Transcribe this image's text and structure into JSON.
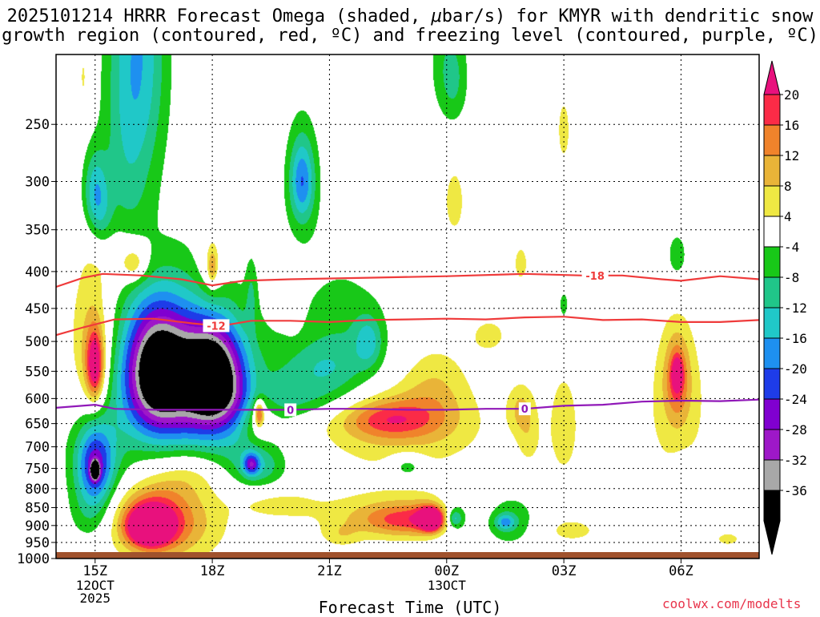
{
  "title": {
    "line1_pre": "2025101214 HRRR Forecast Omega (shaded, ",
    "line1_mu": "μ",
    "line1_post": "bar/s) for KMYR with dendritic snow",
    "line2": "growth region (contoured, red, ºC) and freezing level (contoured, purple, ºC)"
  },
  "xaxis_title": "Forecast Time (UTC)",
  "credit": "coolwx.com/modelts",
  "chart_data": {
    "type": "heatmap",
    "variable": "Omega",
    "units": "μbar/s",
    "x_labels": [
      "15Z",
      "18Z",
      "21Z",
      "00Z",
      "03Z",
      "06Z"
    ],
    "x_hours": [
      15,
      18,
      21,
      24,
      27,
      30
    ],
    "x_range_hours": [
      14,
      32
    ],
    "date_labels": [
      {
        "hour": 15,
        "lines": [
          "12OCT",
          "2025"
        ]
      },
      {
        "hour": 24,
        "lines": [
          "13OCT"
        ]
      }
    ],
    "y_levels_hpa": [
      250,
      300,
      350,
      400,
      450,
      500,
      550,
      600,
      650,
      700,
      750,
      800,
      850,
      900,
      950,
      1000
    ],
    "y_range_hpa": [
      200,
      1000
    ],
    "colorbar": {
      "labels": [
        "20",
        "16",
        "12",
        "8",
        "4",
        "-4",
        "-8",
        "-12",
        "-16",
        "-20",
        "-24",
        "-28",
        "-32",
        "-36"
      ],
      "colors": [
        "#fb2b47",
        "#f0832b",
        "#e9b438",
        "#efe843",
        "#ffffff",
        "#18c818",
        "#20c689",
        "#20c8c8",
        "#1e90f0",
        "#1e3ce8",
        "#8000d0",
        "#9e18c8",
        "#a8a8a8",
        "#000000"
      ],
      "top_arrow_color": "#e8117d",
      "bottom_arrow_color": "#000000"
    },
    "shading_levels": [
      {
        "threshold": "4",
        "color": "#efe843"
      },
      {
        "threshold": "8",
        "color": "#e9b438"
      },
      {
        "threshold": "12",
        "color": "#f0832b"
      },
      {
        "threshold": "16",
        "color": "#fb2b47"
      },
      {
        "threshold": "20",
        "color": "#e8117d"
      },
      {
        "threshold": "-4",
        "color": "#18c818"
      },
      {
        "threshold": "-8",
        "color": "#20c689"
      },
      {
        "threshold": "-12",
        "color": "#20c8c8"
      },
      {
        "threshold": "-16",
        "color": "#1e90f0"
      },
      {
        "threshold": "-20",
        "color": "#1e3ce8"
      },
      {
        "threshold": "-24",
        "color": "#8000d0"
      },
      {
        "threshold": "-28",
        "color": "#9e18c8"
      },
      {
        "threshold": "-32",
        "color": "#a8a8a8"
      },
      {
        "threshold": "-36",
        "color": "#000000"
      }
    ],
    "blobs": [
      {
        "h": 15.8,
        "p": 245,
        "rh": 0.65,
        "rp": 150,
        "v": -10
      },
      {
        "h": 16.3,
        "p": 195,
        "rh": 0.65,
        "rp": 90,
        "v": -10
      },
      {
        "h": 15.0,
        "p": 310,
        "rh": 0.32,
        "rp": 40,
        "v": -14
      },
      {
        "h": 15.2,
        "p": 340,
        "rh": 0.3,
        "rp": 35,
        "v": -5
      },
      {
        "h": 20.3,
        "p": 298,
        "rh": 0.45,
        "rp": 60,
        "v": -9
      },
      {
        "h": 20.3,
        "p": 300,
        "rh": 0.28,
        "rp": 35,
        "v": -11
      },
      {
        "h": 24.0,
        "p": 205,
        "rh": 0.5,
        "rp": 40,
        "v": -6
      },
      {
        "h": 24.2,
        "p": 220,
        "rh": 0.35,
        "rp": 30,
        "v": -5
      },
      {
        "h": 16.6,
        "p": 550,
        "rh": 0.85,
        "rp": 110,
        "v": -40
      },
      {
        "h": 18.0,
        "p": 560,
        "rh": 0.75,
        "rp": 90,
        "v": -38
      },
      {
        "h": 17.2,
        "p": 580,
        "rh": 1.3,
        "rp": 170,
        "v": -12
      },
      {
        "h": 18.6,
        "p": 620,
        "rh": 1.2,
        "rp": 150,
        "v": -9
      },
      {
        "h": 19.0,
        "p": 430,
        "rh": 0.15,
        "rp": 50,
        "v": -6
      },
      {
        "h": 21.3,
        "p": 500,
        "rh": 1.3,
        "rp": 120,
        "v": -7
      },
      {
        "h": 20.8,
        "p": 545,
        "rh": 1.1,
        "rp": 45,
        "v": -7
      },
      {
        "h": 22.0,
        "p": 500,
        "rh": 0.35,
        "rp": 40,
        "v": -10
      },
      {
        "h": 20.0,
        "p": 600,
        "rh": 1.5,
        "rp": 40,
        "v": -7
      },
      {
        "h": 15.0,
        "p": 740,
        "rh": 0.45,
        "rp": 90,
        "v": -20
      },
      {
        "h": 15.0,
        "p": 755,
        "rh": 0.1,
        "rp": 20,
        "v": -40
      },
      {
        "h": 15.1,
        "p": 700,
        "rh": 0.9,
        "rp": 150,
        "v": -8
      },
      {
        "h": 14.9,
        "p": 870,
        "rh": 0.55,
        "rp": 80,
        "v": -6
      },
      {
        "h": 19.2,
        "p": 745,
        "rh": 0.65,
        "rp": 50,
        "v": -9
      },
      {
        "h": 19.0,
        "p": 740,
        "rh": 0.2,
        "rp": 25,
        "v": -17
      },
      {
        "h": 19.1,
        "p": 932,
        "rh": 0.08,
        "rp": 12,
        "v": -5
      },
      {
        "h": 23.0,
        "p": 745,
        "rh": 0.45,
        "rp": 30,
        "v": -9
      },
      {
        "h": 24.3,
        "p": 875,
        "rh": 0.55,
        "rp": 75,
        "v": -9
      },
      {
        "h": 24.2,
        "p": 880,
        "rh": 0.2,
        "rp": 25,
        "v": -13
      },
      {
        "h": 25.6,
        "p": 885,
        "rh": 0.75,
        "rp": 75,
        "v": -9
      },
      {
        "h": 25.5,
        "p": 890,
        "rh": 0.25,
        "rp": 22,
        "v": -12
      },
      {
        "h": 27.0,
        "p": 445,
        "rh": 0.15,
        "rp": 25,
        "v": -6
      },
      {
        "h": 29.9,
        "p": 382,
        "rh": 0.4,
        "rp": 45,
        "v": -6
      },
      {
        "h": 30.1,
        "p": 775,
        "rh": 0.35,
        "rp": 50,
        "v": -6
      },
      {
        "h": 14.9,
        "p": 520,
        "rh": 0.55,
        "rp": 140,
        "v": 10
      },
      {
        "h": 15.0,
        "p": 540,
        "rh": 0.22,
        "rp": 60,
        "v": 22
      },
      {
        "h": 15.8,
        "p": 385,
        "rh": 0.7,
        "rp": 40,
        "v": 6
      },
      {
        "h": 16.0,
        "p": 390,
        "rh": 0.3,
        "rp": 20,
        "v": 9
      },
      {
        "h": 18.0,
        "p": 390,
        "rh": 0.35,
        "rp": 50,
        "v": 7
      },
      {
        "h": 18.0,
        "p": 395,
        "rh": 0.12,
        "rp": 20,
        "v": 10
      },
      {
        "h": 20.1,
        "p": 440,
        "rh": 0.22,
        "rp": 40,
        "v": 5
      },
      {
        "h": 19.2,
        "p": 630,
        "rh": 0.45,
        "rp": 60,
        "v": 9
      },
      {
        "h": 19.2,
        "p": 630,
        "rh": 0.12,
        "rp": 25,
        "v": 19
      },
      {
        "h": 17.2,
        "p": 880,
        "rh": 1.3,
        "rp": 130,
        "v": 9
      },
      {
        "h": 16.4,
        "p": 890,
        "rh": 0.9,
        "rp": 90,
        "v": 19
      },
      {
        "h": 16.4,
        "p": 905,
        "rh": 0.45,
        "rp": 45,
        "v": 28
      },
      {
        "h": 17.4,
        "p": 760,
        "rh": 0.9,
        "rp": 60,
        "v": 6
      },
      {
        "h": 19.6,
        "p": 840,
        "rh": 1.0,
        "rp": 40,
        "v": 5
      },
      {
        "h": 22.8,
        "p": 660,
        "rh": 2.2,
        "rp": 95,
        "v": 8
      },
      {
        "h": 22.5,
        "p": 640,
        "rh": 1.2,
        "rp": 40,
        "v": 13
      },
      {
        "h": 23.7,
        "p": 580,
        "rh": 0.85,
        "rp": 80,
        "v": 6
      },
      {
        "h": 22.8,
        "p": 870,
        "rh": 2.4,
        "rp": 70,
        "v": 7
      },
      {
        "h": 23.0,
        "p": 885,
        "rh": 1.2,
        "rp": 45,
        "v": 12
      },
      {
        "h": 23.6,
        "p": 880,
        "rh": 0.35,
        "rp": 35,
        "v": 19
      },
      {
        "h": 23.6,
        "p": 885,
        "rh": 0.18,
        "rp": 22,
        "v": 26
      },
      {
        "h": 21.3,
        "p": 930,
        "rh": 0.5,
        "rp": 35,
        "v": 5
      },
      {
        "h": 24.2,
        "p": 320,
        "rh": 0.3,
        "rp": 40,
        "v": 6
      },
      {
        "h": 25.1,
        "p": 490,
        "rh": 0.6,
        "rp": 35,
        "v": 5
      },
      {
        "h": 25.9,
        "p": 620,
        "rh": 0.35,
        "rp": 50,
        "v": 8
      },
      {
        "h": 25.9,
        "p": 390,
        "rh": 0.28,
        "rp": 35,
        "v": 5
      },
      {
        "h": 27.0,
        "p": 255,
        "rh": 0.25,
        "rp": 40,
        "v": 5
      },
      {
        "h": 26.1,
        "p": 685,
        "rh": 0.3,
        "rp": 60,
        "v": 5
      },
      {
        "h": 27.0,
        "p": 655,
        "rh": 0.45,
        "rp": 130,
        "v": 6
      },
      {
        "h": 27.2,
        "p": 915,
        "rh": 0.9,
        "rp": 45,
        "v": 5
      },
      {
        "h": 29.9,
        "p": 610,
        "rh": 0.8,
        "rp": 160,
        "v": 7
      },
      {
        "h": 29.9,
        "p": 560,
        "rh": 0.3,
        "rp": 70,
        "v": 13
      },
      {
        "h": 29.9,
        "p": 555,
        "rh": 0.12,
        "rp": 25,
        "v": 17
      },
      {
        "h": 31.2,
        "p": 940,
        "rh": 0.35,
        "rp": 22,
        "v": 6
      },
      {
        "h": 14.7,
        "p": 215,
        "rh": 0.1,
        "rp": 20,
        "v": 5
      }
    ],
    "dgz_contours": [
      {
        "label": "-18",
        "label_hour": 27.8,
        "color": "#ef3b3b",
        "points": [
          [
            14,
            420
          ],
          [
            14.7,
            408
          ],
          [
            15.2,
            403
          ],
          [
            16.2,
            405
          ],
          [
            17.2,
            410
          ],
          [
            18.0,
            418
          ],
          [
            18.8,
            412
          ],
          [
            20.0,
            410
          ],
          [
            22.0,
            408
          ],
          [
            24.0,
            406
          ],
          [
            26.0,
            403
          ],
          [
            27.5,
            405
          ],
          [
            28.5,
            405
          ],
          [
            29.5,
            410
          ],
          [
            30.0,
            412
          ],
          [
            31.0,
            406
          ],
          [
            32.0,
            410
          ]
        ]
      },
      {
        "label": "-12",
        "label_hour": 18.1,
        "color": "#ef3b3b",
        "points": [
          [
            14,
            490
          ],
          [
            14.7,
            478
          ],
          [
            15.5,
            466
          ],
          [
            16.5,
            465
          ],
          [
            17.5,
            472
          ],
          [
            18.2,
            476
          ],
          [
            19.0,
            468
          ],
          [
            20.0,
            468
          ],
          [
            21.0,
            470
          ],
          [
            22.0,
            467
          ],
          [
            23.0,
            466
          ],
          [
            24.0,
            465
          ],
          [
            25.0,
            466
          ],
          [
            26.0,
            463
          ],
          [
            27.0,
            462
          ],
          [
            28.0,
            467
          ],
          [
            29.0,
            466
          ],
          [
            30.0,
            470
          ],
          [
            31.0,
            470
          ],
          [
            32.0,
            467
          ]
        ]
      },
      {
        "label": "0",
        "label_hour": 20.0,
        "color": "#9018b8",
        "points": [
          [
            14,
            618
          ],
          [
            15.0,
            612
          ],
          [
            15.5,
            620
          ],
          [
            16.5,
            622
          ],
          [
            17.8,
            622
          ],
          [
            19.0,
            622
          ],
          [
            20.0,
            622
          ],
          [
            21.0,
            620
          ],
          [
            22.0,
            620
          ],
          [
            23.0,
            622
          ],
          [
            24.0,
            622
          ],
          [
            25.0,
            620
          ],
          [
            26.0,
            620
          ],
          [
            27.0,
            614
          ],
          [
            28.0,
            612
          ],
          [
            29.0,
            606
          ],
          [
            30.0,
            604
          ],
          [
            31.0,
            605
          ],
          [
            32.0,
            602
          ]
        ]
      },
      {
        "label": "0",
        "label_hour": 26.0,
        "color": "#9018b8",
        "points": []
      }
    ]
  }
}
